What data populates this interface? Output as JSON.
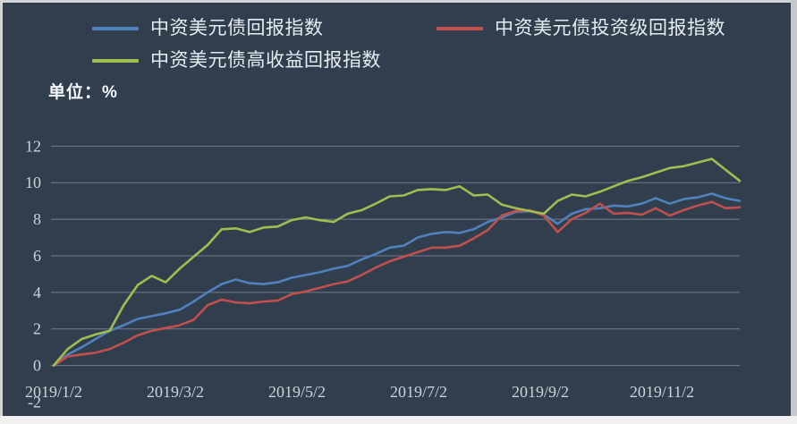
{
  "panel": {
    "background": "#313e4e",
    "frame_color": "#d3d4d6",
    "bottom_strip_color": "#f1f1f2"
  },
  "unit_label": "单位：%",
  "legend": {
    "items": [
      {
        "label": "中资美元债回报指数",
        "color": "#4f81bd"
      },
      {
        "label": "中资美元债投资级回报指数",
        "color": "#c0504d"
      },
      {
        "label": "中资美元债高收益回报指数",
        "color": "#a2bd4f"
      }
    ]
  },
  "chart_data": {
    "type": "line",
    "title": "",
    "ylabel": "单位：%",
    "ylim": [
      -2,
      12
    ],
    "grid": "horizontal",
    "legend_position": "top",
    "y_ticks": [
      12,
      10,
      8,
      6,
      4,
      2,
      0,
      -2
    ],
    "x_ticks": [
      {
        "label": "2019/1/2",
        "month_offset": 0
      },
      {
        "label": "2019/3/2",
        "month_offset": 2
      },
      {
        "label": "2019/5/2",
        "month_offset": 4
      },
      {
        "label": "2019/7/2",
        "month_offset": 6
      },
      {
        "label": "2019/9/2",
        "month_offset": 8
      },
      {
        "label": "2019/11/2",
        "month_offset": 10
      }
    ],
    "dates": [
      "2019/1/2",
      "2019/1/9",
      "2019/1/16",
      "2019/1/23",
      "2019/1/30",
      "2019/2/6",
      "2019/2/13",
      "2019/2/20",
      "2019/2/27",
      "2019/3/6",
      "2019/3/13",
      "2019/3/20",
      "2019/3/27",
      "2019/4/3",
      "2019/4/10",
      "2019/4/17",
      "2019/4/24",
      "2019/5/1",
      "2019/5/8",
      "2019/5/15",
      "2019/5/22",
      "2019/5/29",
      "2019/6/5",
      "2019/6/12",
      "2019/6/19",
      "2019/6/26",
      "2019/7/3",
      "2019/7/10",
      "2019/7/17",
      "2019/7/24",
      "2019/7/31",
      "2019/8/7",
      "2019/8/14",
      "2019/8/21",
      "2019/8/28",
      "2019/9/4",
      "2019/9/11",
      "2019/9/18",
      "2019/9/25",
      "2019/10/2",
      "2019/10/9",
      "2019/10/16",
      "2019/10/23",
      "2019/10/30",
      "2019/11/6",
      "2019/11/13",
      "2019/11/20",
      "2019/11/27",
      "2019/12/4",
      "2019/12/11"
    ],
    "series": [
      {
        "name": "中资美元债回报指数",
        "color": "#4f81bd",
        "values": [
          0,
          0.6,
          1.0,
          1.45,
          1.9,
          2.2,
          2.55,
          2.7,
          2.85,
          3.05,
          3.5,
          4.0,
          4.45,
          4.7,
          4.5,
          4.45,
          4.55,
          4.8,
          4.95,
          5.1,
          5.3,
          5.45,
          5.8,
          6.1,
          6.45,
          6.55,
          7.0,
          7.2,
          7.3,
          7.25,
          7.45,
          7.85,
          8.1,
          8.4,
          8.45,
          8.25,
          7.75,
          8.3,
          8.55,
          8.6,
          8.75,
          8.7,
          8.85,
          9.15,
          8.85,
          9.1,
          9.2,
          9.4,
          9.15,
          9.0
        ]
      },
      {
        "name": "中资美元债投资级回报指数",
        "color": "#c0504d",
        "values": [
          0,
          0.5,
          0.6,
          0.7,
          0.9,
          1.25,
          1.65,
          1.9,
          2.05,
          2.2,
          2.5,
          3.3,
          3.6,
          3.45,
          3.4,
          3.5,
          3.55,
          3.9,
          4.05,
          4.25,
          4.45,
          4.6,
          4.95,
          5.35,
          5.7,
          5.95,
          6.2,
          6.45,
          6.45,
          6.55,
          6.95,
          7.4,
          8.2,
          8.45,
          8.5,
          8.2,
          7.3,
          8.0,
          8.35,
          8.85,
          8.3,
          8.35,
          8.25,
          8.6,
          8.2,
          8.5,
          8.75,
          8.95,
          8.6,
          8.65
        ]
      },
      {
        "name": "中资美元债高收益回报指数",
        "color": "#a2bd4f",
        "values": [
          0,
          0.9,
          1.45,
          1.7,
          1.9,
          3.3,
          4.4,
          4.9,
          4.55,
          5.3,
          5.95,
          6.6,
          7.45,
          7.5,
          7.3,
          7.55,
          7.6,
          7.95,
          8.1,
          7.95,
          7.85,
          8.3,
          8.5,
          8.85,
          9.25,
          9.3,
          9.6,
          9.65,
          9.6,
          9.8,
          9.3,
          9.35,
          8.8,
          8.6,
          8.45,
          8.3,
          9.0,
          9.35,
          9.25,
          9.5,
          9.8,
          10.1,
          10.3,
          10.55,
          10.8,
          10.9,
          11.1,
          11.3,
          10.7,
          10.1
        ]
      }
    ]
  }
}
